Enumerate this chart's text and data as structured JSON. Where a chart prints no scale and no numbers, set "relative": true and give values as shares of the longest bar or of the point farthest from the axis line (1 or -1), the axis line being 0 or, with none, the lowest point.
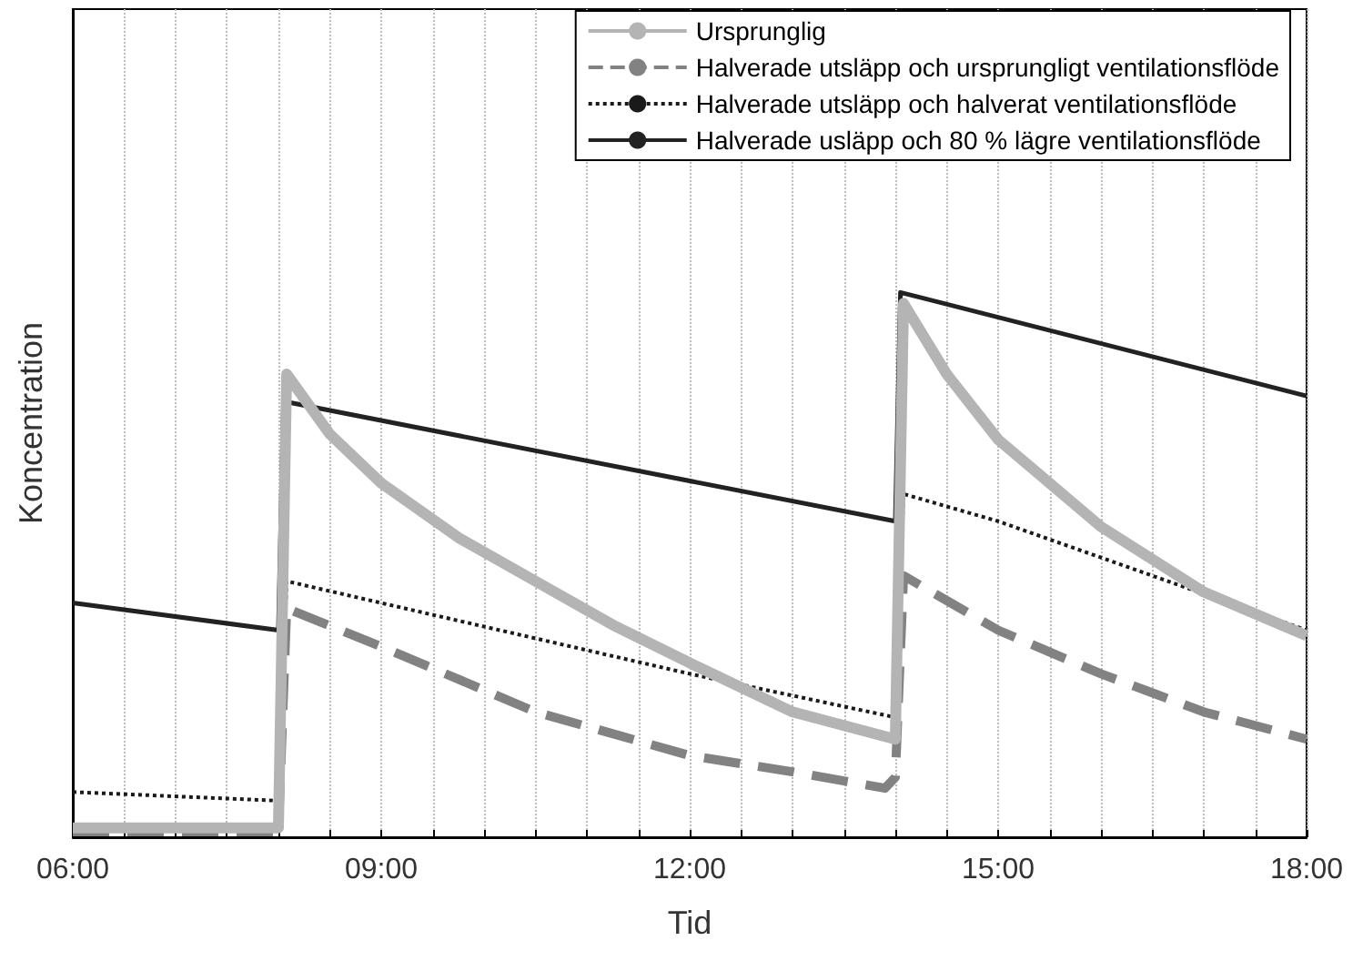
{
  "chart_data": {
    "type": "line",
    "relative": true,
    "xlabel": "Tid",
    "ylabel": "Koncentration",
    "xlim": [
      6,
      18
    ],
    "xticks": [
      {
        "value": 6,
        "label": "06:00"
      },
      {
        "value": 6.5,
        "label": null
      },
      {
        "value": 7,
        "label": null
      },
      {
        "value": 7.5,
        "label": null
      },
      {
        "value": 8,
        "label": null
      },
      {
        "value": 8.5,
        "label": null
      },
      {
        "value": 9,
        "label": "09:00"
      },
      {
        "value": 9.5,
        "label": null
      },
      {
        "value": 10,
        "label": null
      },
      {
        "value": 10.5,
        "label": null
      },
      {
        "value": 11,
        "label": null
      },
      {
        "value": 11.5,
        "label": null
      },
      {
        "value": 12,
        "label": "12:00"
      },
      {
        "value": 12.5,
        "label": null
      },
      {
        "value": 13,
        "label": null
      },
      {
        "value": 13.5,
        "label": null
      },
      {
        "value": 14,
        "label": null
      },
      {
        "value": 14.5,
        "label": null
      },
      {
        "value": 15,
        "label": "15:00"
      },
      {
        "value": 15.5,
        "label": null
      },
      {
        "value": 16,
        "label": null
      },
      {
        "value": 16.5,
        "label": null
      },
      {
        "value": 17,
        "label": null
      },
      {
        "value": 17.5,
        "label": null
      },
      {
        "value": 18,
        "label": "18:00"
      }
    ],
    "grid": "x",
    "legend": "top right",
    "marker": "none",
    "series": [
      {
        "name": "Ursprunglig",
        "color": "#b4b4b4",
        "line_style": "solid",
        "x": [
          6,
          8,
          8.08,
          8.5,
          9,
          9.75,
          10.5,
          11.25,
          12,
          13,
          14,
          14.08,
          14.5,
          15,
          16,
          17,
          18
        ],
        "values": [
          0.017,
          0.017,
          0.85,
          0.74,
          0.65,
          0.55,
          0.47,
          0.39,
          0.32,
          0.23,
          0.18,
          0.98,
          0.85,
          0.73,
          0.57,
          0.45,
          0.37
        ]
      },
      {
        "name": "Halverade utsläpp och ursprungligt ventilationsflöde",
        "color": "#828282",
        "line_style": "dashed",
        "x": [
          6,
          8,
          8.08,
          9,
          10.5,
          12,
          13,
          13.9,
          14,
          14.08,
          15,
          16,
          17,
          18
        ],
        "values": [
          0.01,
          0.01,
          0.42,
          0.35,
          0.23,
          0.15,
          0.12,
          0.09,
          0.11,
          0.48,
          0.38,
          0.3,
          0.23,
          0.18
        ]
      },
      {
        "name": "Halverade utsläpp och halverat ventilationsflöde",
        "color": "#1a1a1a",
        "line_style": "dotted",
        "x": [
          6,
          8,
          8.08,
          9,
          12,
          14,
          14.08,
          15,
          18
        ],
        "values": [
          0.083,
          0.067,
          0.47,
          0.43,
          0.3,
          0.22,
          0.63,
          0.58,
          0.38
        ]
      },
      {
        "name": "Halverade usläpp och 80 % lägre ventilationsflöde",
        "color": "#222222",
        "line_style": "solid",
        "x": [
          6,
          8,
          8.05,
          14,
          14.05,
          18
        ],
        "values": [
          0.43,
          0.38,
          0.8,
          0.58,
          1.0,
          0.81
        ]
      }
    ]
  }
}
